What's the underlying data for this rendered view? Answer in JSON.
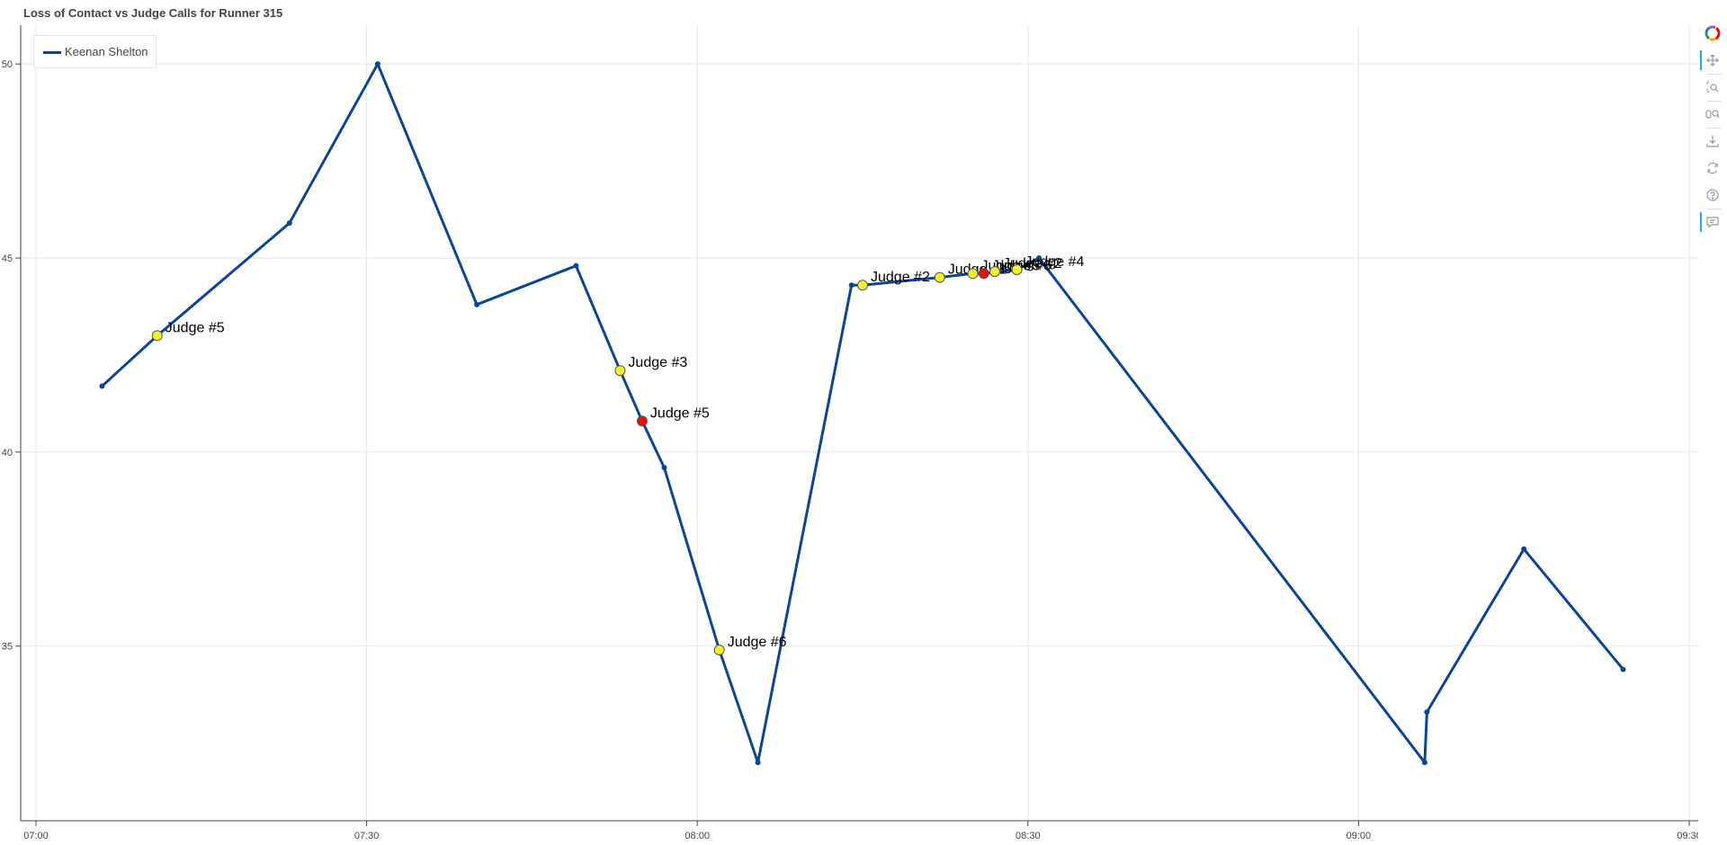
{
  "title": "Loss of Contact vs Judge Calls for Runner 315",
  "legend": {
    "label": "Keenan Shelton",
    "color": "#0b4596"
  },
  "colors": {
    "line": "#0b4596",
    "yellow_call": "#f1f12a",
    "red_call": "#e4120b",
    "grid": "#e5e5e5",
    "axis": "#444444"
  },
  "chart_data": {
    "type": "line",
    "title": "Loss of Contact vs Judge Calls for Runner 315",
    "xlabel": "",
    "ylabel": "",
    "x_unit": "time",
    "xlim": [
      "07:00",
      "09:30"
    ],
    "ylim": [
      30.5,
      51
    ],
    "x_ticks": [
      "07:00",
      "07:30",
      "08:00",
      "08:30",
      "09:00",
      "09:30"
    ],
    "y_ticks": [
      35,
      40,
      45,
      50
    ],
    "grid": true,
    "legend_position": "top-left",
    "series": [
      {
        "name": "Keenan Shelton",
        "points": [
          {
            "x": "07:06",
            "y": 41.7
          },
          {
            "x": "07:11",
            "y": 43.0
          },
          {
            "x": "07:23",
            "y": 45.9
          },
          {
            "x": "07:31",
            "y": 50.0
          },
          {
            "x": "07:40",
            "y": 43.8
          },
          {
            "x": "07:49",
            "y": 44.8
          },
          {
            "x": "07:53",
            "y": 42.1
          },
          {
            "x": "07:55",
            "y": 40.8
          },
          {
            "x": "07:57",
            "y": 39.6
          },
          {
            "x": "08:02",
            "y": 34.9
          },
          {
            "x": "08:05.5",
            "y": 32.0
          },
          {
            "x": "08:14",
            "y": 44.3
          },
          {
            "x": "08:15",
            "y": 44.3
          },
          {
            "x": "08:22",
            "y": 44.5
          },
          {
            "x": "08:25",
            "y": 44.6
          },
          {
            "x": "08:26",
            "y": 44.6
          },
          {
            "x": "08:29",
            "y": 44.7
          },
          {
            "x": "08:31",
            "y": 45.0
          },
          {
            "x": "09:06",
            "y": 32.0
          },
          {
            "x": "09:06.2",
            "y": 33.3
          },
          {
            "x": "09:15",
            "y": 37.5
          },
          {
            "x": "09:24",
            "y": 34.4
          }
        ]
      }
    ],
    "judge_calls": [
      {
        "x": "07:11",
        "y": 43.0,
        "label": "Judge #5",
        "color": "yellow"
      },
      {
        "x": "07:53",
        "y": 42.1,
        "label": "Judge #3",
        "color": "yellow"
      },
      {
        "x": "07:55",
        "y": 40.8,
        "label": "Judge #5",
        "color": "red"
      },
      {
        "x": "08:02",
        "y": 34.9,
        "label": "Judge #6",
        "color": "yellow"
      },
      {
        "x": "08:15",
        "y": 44.3,
        "label": "Judge #2",
        "color": "yellow"
      },
      {
        "x": "08:22",
        "y": 44.5,
        "label": "Judge #1",
        "color": "yellow"
      },
      {
        "x": "08:25",
        "y": 44.6,
        "label": "Judge #3",
        "color": "yellow"
      },
      {
        "x": "08:26",
        "y": 44.6,
        "label": "Judge #6",
        "color": "red"
      },
      {
        "x": "08:27",
        "y": 44.65,
        "label": "Judge #2",
        "color": "yellow"
      },
      {
        "x": "08:29",
        "y": 44.7,
        "label": "Judge #4",
        "color": "yellow"
      }
    ]
  },
  "toolbar": [
    {
      "name": "bokeh-logo-icon"
    },
    {
      "name": "pan-tool-icon",
      "active": true
    },
    {
      "name": "box-zoom-tool-icon"
    },
    {
      "name": "wheel-zoom-tool-icon"
    },
    {
      "name": "save-tool-icon"
    },
    {
      "name": "reset-tool-icon"
    },
    {
      "name": "help-tool-icon"
    },
    {
      "name": "hover-tool-icon",
      "active": true
    }
  ]
}
